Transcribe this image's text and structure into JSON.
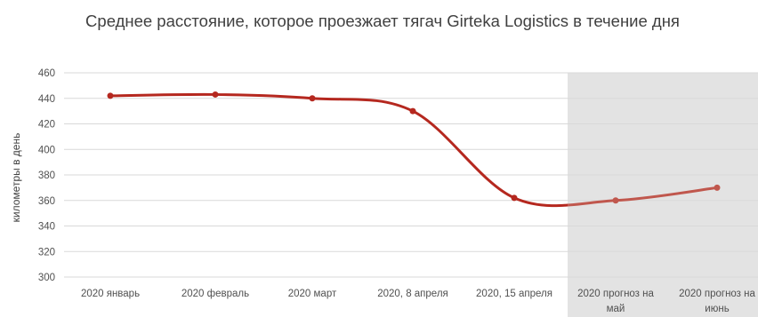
{
  "chart_data": {
    "type": "line",
    "title": "Среднее расстояние, которое проезжает тягач Girteka Logistics в течение дня",
    "ylabel": "километры в день",
    "xlabel": "",
    "categories": [
      "2020 январь",
      "2020 февраль",
      "2020 март",
      "2020, 8 апреля",
      "2020, 15 апреля",
      "2020 прогноз на май",
      "2020 прогноз на июнь"
    ],
    "series": [
      {
        "values": [
          442,
          443,
          440,
          430,
          362,
          360,
          370
        ]
      }
    ],
    "forecast_from_index": 5,
    "ylim": [
      300,
      460
    ],
    "yticks": [
      300,
      320,
      340,
      360,
      380,
      400,
      420,
      440,
      460
    ],
    "grid": true,
    "legend": "none",
    "colors": {
      "actual_line": "#b5281f",
      "forecast_line": "#c0574d",
      "forecast_shade": "#e3e3e3",
      "grid": "#d9d9d9"
    }
  }
}
